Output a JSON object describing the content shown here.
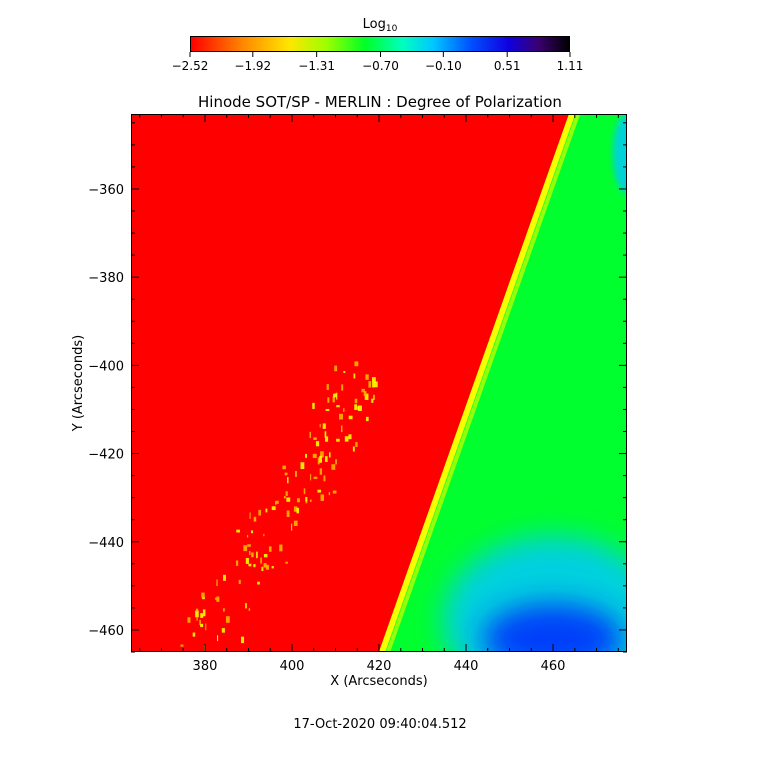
{
  "chart_data": {
    "type": "heatmap",
    "title": "Hinode SOT/SP - MERLIN : Degree of Polarization",
    "xlabel": "X (Arcseconds)",
    "ylabel": "Y (Arcseconds)",
    "xlim": [
      363,
      477
    ],
    "ylim": [
      -465,
      -343
    ],
    "x_ticks": [
      380,
      400,
      420,
      440,
      460
    ],
    "y_ticks": [
      -360,
      -380,
      -400,
      -420,
      -440,
      -460
    ],
    "x_tick_labels": [
      "380",
      "400",
      "420",
      "440",
      "460"
    ],
    "y_tick_labels": [
      "−360",
      "−380",
      "−400",
      "−420",
      "−440",
      "−460"
    ],
    "colorbar": {
      "label_main": "Log",
      "label_sub": "10",
      "ticks": [
        -2.52,
        -1.92,
        -1.31,
        -0.7,
        -0.1,
        0.51,
        1.11
      ],
      "tick_labels": [
        "−2.52",
        "−1.92",
        "−1.31",
        "−0.70",
        "−0.10",
        "0.51",
        "1.11"
      ],
      "colors": [
        "#ff0000",
        "#ff8a00",
        "#ffe600",
        "#9bff00",
        "#00ff25",
        "#00ffc0",
        "#00c8ff",
        "#0050ff",
        "#1000e0",
        "#3a0070",
        "#000000"
      ]
    },
    "regions": {
      "background_value": -2.52,
      "disk_value": -0.7,
      "limb_line": [
        [
          421,
          -465
        ],
        [
          465,
          -343
        ]
      ],
      "limb_edge_value": -1.31,
      "enhanced_region_value": -0.1,
      "enhanced_region_center": [
        460,
        -458
      ],
      "strong_region_value": 0.51,
      "strong_region_center": [
        460,
        -462
      ]
    },
    "colors": {
      "background": "#ff0000",
      "disk": "#00ff2e",
      "limb_edge": "#f6ff00",
      "enhanced": "#00c8ff",
      "strong": "#0028ff",
      "features": "#ffb400"
    }
  },
  "timestamp": "17-Oct-2020 09:40:04.512"
}
